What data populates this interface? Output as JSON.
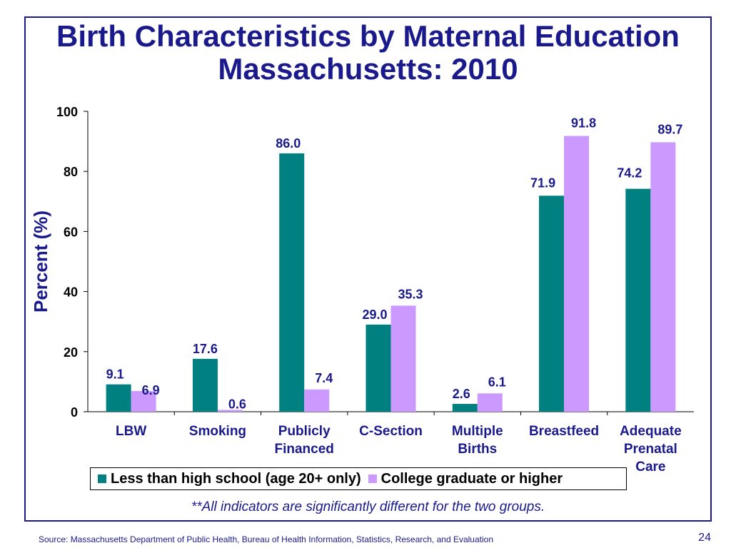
{
  "slide": {
    "title_line1": "Birth Characteristics by Maternal Education",
    "title_line2": "Massachusetts: 2010",
    "note": "**All indicators are significantly different for the two groups.",
    "source": "Source:  Massachusetts Department of Public Health, Bureau of Health Information, Statistics, Research, and Evaluation",
    "page_number": "24"
  },
  "colors": {
    "title": "#1a1a8c",
    "series1": "#008080",
    "series2": "#cc99ff"
  },
  "chart_data": {
    "type": "bar",
    "title": "",
    "xlabel": "",
    "ylabel": "Percent (%)",
    "ylim": [
      0,
      100
    ],
    "yticks": [
      0,
      20,
      40,
      60,
      80,
      100
    ],
    "grid": false,
    "legend_position": "bottom",
    "categories": [
      [
        "LBW"
      ],
      [
        "Smoking"
      ],
      [
        "Publicly",
        "Financed"
      ],
      [
        "C-Section"
      ],
      [
        "Multiple",
        "Births"
      ],
      [
        "Breastfeed"
      ],
      [
        "Adequate",
        "Prenatal",
        "Care"
      ]
    ],
    "series": [
      {
        "name": "Less than high school (age 20+ only)",
        "color": "#008080",
        "values": [
          9.1,
          17.6,
          86.0,
          29.0,
          2.6,
          71.9,
          74.2
        ],
        "labels": [
          "9.1",
          "17.6",
          "86.0",
          "29.0",
          "2.6",
          "71.9",
          "74.2"
        ]
      },
      {
        "name": "College graduate or higher",
        "color": "#cc99ff",
        "values": [
          6.9,
          0.6,
          7.4,
          35.3,
          6.1,
          91.8,
          89.7
        ],
        "labels": [
          "6.9",
          "0.6",
          "7.4",
          "35.3",
          "6.1",
          "91.8",
          "89.7"
        ]
      }
    ]
  }
}
